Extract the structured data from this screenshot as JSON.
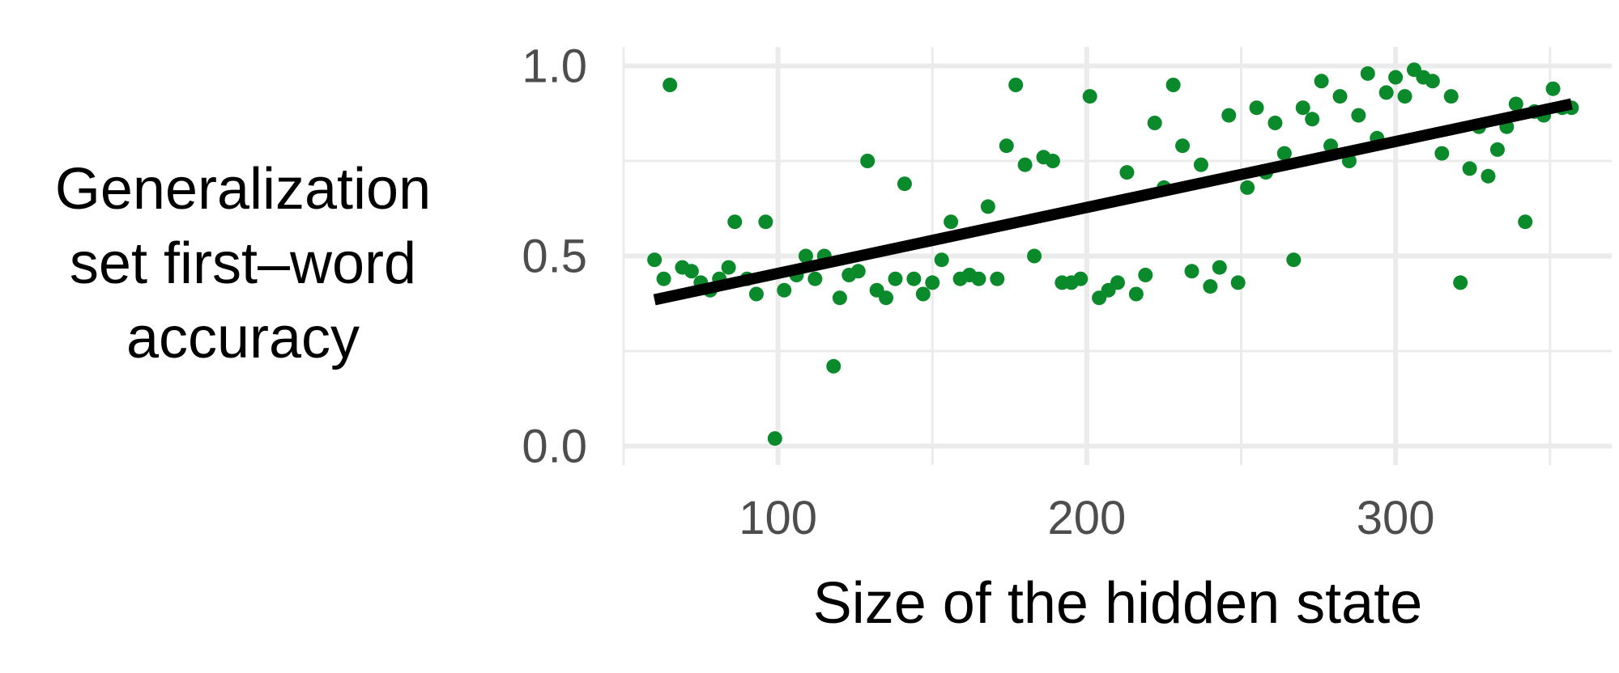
{
  "chart_data": {
    "type": "scatter",
    "xlabel": "Size of the hidden state",
    "ylabel": "Generalization set first–word accuracy",
    "ylabel_lines": [
      "Generalization",
      "set first–word",
      "accuracy"
    ],
    "x_ticks": [
      100,
      200,
      300
    ],
    "x_tick_labels": [
      "100",
      "200",
      "300"
    ],
    "y_ticks": [
      0.0,
      0.5,
      1.0
    ],
    "y_tick_labels": [
      "0.0",
      "0.5",
      "1.0"
    ],
    "xlim": [
      50,
      370
    ],
    "ylim": [
      -0.05,
      1.05
    ],
    "grid": true,
    "theme": "minimal",
    "colors": {
      "points": "#0a8a2a",
      "trend": "#000000",
      "grid": "#ebebeb",
      "tick_text": "#4d4d4d"
    },
    "series": [
      {
        "kind": "points",
        "x": [
          60,
          63,
          65,
          69,
          72,
          75,
          78,
          81,
          84,
          86,
          90,
          93,
          96,
          99,
          102,
          106,
          109,
          112,
          115,
          118,
          120,
          123,
          126,
          129,
          132,
          135,
          138,
          141,
          144,
          147,
          150,
          153,
          156,
          159,
          162,
          165,
          168,
          171,
          174,
          177,
          180,
          183,
          186,
          189,
          192,
          195,
          198,
          201,
          204,
          207,
          210,
          213,
          216,
          219,
          222,
          225,
          228,
          231,
          234,
          237,
          240,
          243,
          246,
          249,
          252,
          255,
          258,
          261,
          264,
          267,
          270,
          273,
          276,
          279,
          282,
          285,
          288,
          291,
          294,
          297,
          300,
          303,
          306,
          309,
          312,
          315,
          318,
          321,
          324,
          327,
          330,
          333,
          336,
          339,
          342,
          345,
          348,
          351,
          354,
          357
        ],
        "y": [
          0.49,
          0.44,
          0.95,
          0.47,
          0.46,
          0.43,
          0.41,
          0.44,
          0.47,
          0.59,
          0.44,
          0.4,
          0.59,
          0.02,
          0.41,
          0.45,
          0.5,
          0.44,
          0.5,
          0.21,
          0.39,
          0.45,
          0.46,
          0.75,
          0.41,
          0.39,
          0.44,
          0.69,
          0.44,
          0.4,
          0.43,
          0.49,
          0.59,
          0.44,
          0.45,
          0.44,
          0.63,
          0.44,
          0.79,
          0.95,
          0.74,
          0.5,
          0.76,
          0.75,
          0.43,
          0.43,
          0.44,
          0.92,
          0.39,
          0.41,
          0.43,
          0.72,
          0.4,
          0.45,
          0.85,
          0.68,
          0.95,
          0.79,
          0.46,
          0.74,
          0.42,
          0.47,
          0.87,
          0.43,
          0.68,
          0.89,
          0.72,
          0.85,
          0.77,
          0.49,
          0.89,
          0.86,
          0.96,
          0.79,
          0.92,
          0.75,
          0.87,
          0.98,
          0.81,
          0.93,
          0.97,
          0.92,
          0.99,
          0.97,
          0.96,
          0.77,
          0.92,
          0.43,
          0.73,
          0.84,
          0.71,
          0.78,
          0.84,
          0.9,
          0.59,
          0.88,
          0.87,
          0.94,
          0.89,
          0.89
        ]
      },
      {
        "kind": "trend",
        "x": [
          60,
          357
        ],
        "y": [
          0.385,
          0.9
        ]
      }
    ]
  }
}
